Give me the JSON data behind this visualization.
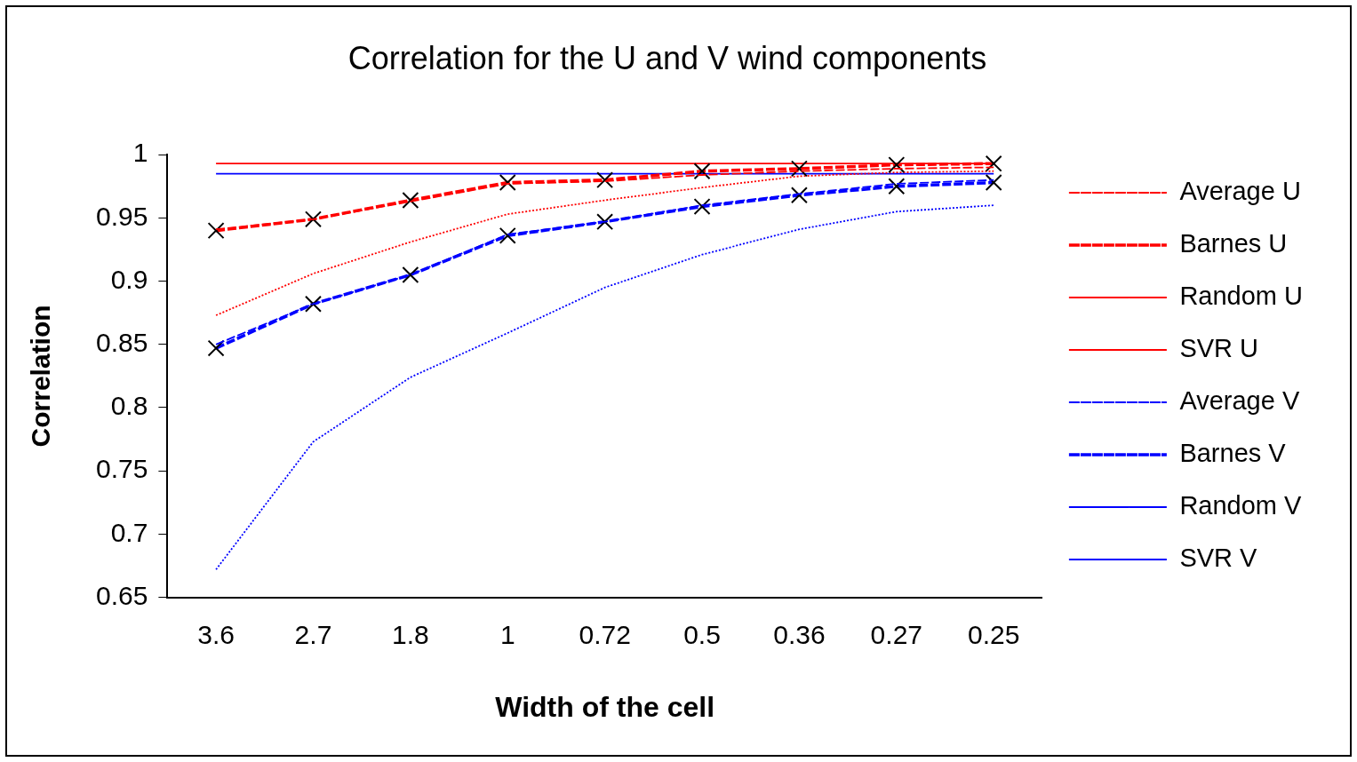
{
  "chart_data": {
    "type": "line",
    "title": "Correlation for the U and V wind components",
    "xlabel": "Width of the cell",
    "ylabel": "Correlation",
    "categories": [
      "3.6",
      "2.7",
      "1.8",
      "1",
      "0.72",
      "0.5",
      "0.36",
      "0.27",
      "0.25"
    ],
    "ylim": [
      0.65,
      1
    ],
    "yticks": [
      {
        "value": 0.65,
        "label": "0.65"
      },
      {
        "value": 0.7,
        "label": "0.7"
      },
      {
        "value": 0.75,
        "label": "0.75"
      },
      {
        "value": 0.8,
        "label": "0.8"
      },
      {
        "value": 0.85,
        "label": "0.85"
      },
      {
        "value": 0.9,
        "label": "0.9"
      },
      {
        "value": 0.95,
        "label": "0.95"
      },
      {
        "value": 1,
        "label": "1"
      }
    ],
    "grid": false,
    "legend": "right",
    "marker": "none",
    "series": [
      {
        "name": "Average U",
        "color": "#ff0000",
        "line_style": "dashed",
        "values": [
          0.941,
          0.949,
          0.963,
          0.977,
          0.979,
          0.984,
          0.987,
          0.989,
          0.99
        ]
      },
      {
        "name": "Barnes U",
        "color": "#ff0000",
        "line_style": "dashed",
        "marker": "cross",
        "values": [
          0.94,
          0.949,
          0.964,
          0.978,
          0.98,
          0.987,
          0.989,
          0.992,
          0.993
        ]
      },
      {
        "name": "Random U",
        "color": "#ff0000",
        "line_style": "dotted",
        "values": [
          0.873,
          0.906,
          0.931,
          0.953,
          0.964,
          0.974,
          0.983,
          0.986,
          0.987
        ]
      },
      {
        "name": "SVR U",
        "color": "#ff0000",
        "line_style": "solid",
        "values": [
          0.993,
          0.993,
          0.993,
          0.993,
          0.993,
          0.993,
          0.993,
          0.993,
          0.993
        ]
      },
      {
        "name": "Average V",
        "color": "#0000ff",
        "line_style": "dashed",
        "values": [
          0.85,
          0.882,
          0.905,
          0.937,
          0.947,
          0.96,
          0.969,
          0.977,
          0.98
        ]
      },
      {
        "name": "Barnes V",
        "color": "#0000ff",
        "line_style": "dashed",
        "marker": "cross",
        "values": [
          0.847,
          0.882,
          0.905,
          0.936,
          0.947,
          0.959,
          0.968,
          0.975,
          0.978
        ]
      },
      {
        "name": "Random V",
        "color": "#0000ff",
        "line_style": "dotted",
        "values": [
          0.672,
          0.773,
          0.824,
          0.859,
          0.895,
          0.921,
          0.941,
          0.955,
          0.96
        ]
      },
      {
        "name": "SVR V",
        "color": "#0000ff",
        "line_style": "solid",
        "values": [
          0.985,
          0.985,
          0.985,
          0.985,
          0.985,
          0.985,
          0.985,
          0.985,
          0.985
        ]
      }
    ]
  }
}
